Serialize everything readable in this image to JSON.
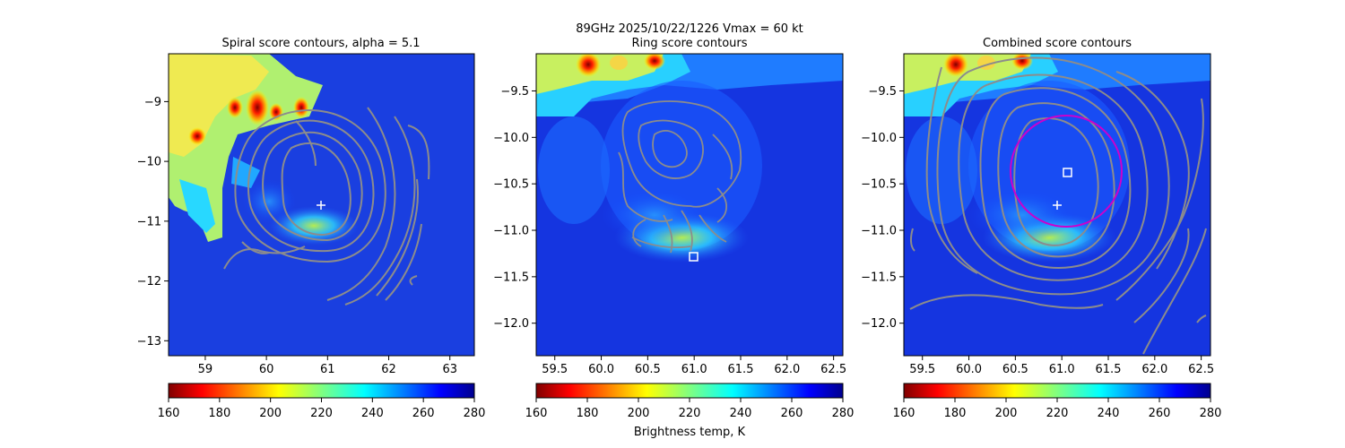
{
  "figure": {
    "suptitle": "89GHz  2025/10/22/1226    Vmax = 60 kt",
    "xlabel": "Brightness temp, K"
  },
  "chart_data": [
    {
      "type": "heatmap",
      "title": "Spiral score contours, alpha =  5.1",
      "xlim": [
        58.4,
        63.4
      ],
      "ylim": [
        -13.25,
        -8.2
      ],
      "xticks": [
        59,
        60,
        61,
        62,
        63
      ],
      "yticks": [
        -9,
        -10,
        -11,
        -12,
        -13
      ],
      "xtick_labels": [
        "59",
        "60",
        "61",
        "62",
        "63"
      ],
      "ytick_labels": [
        "−9",
        "−10",
        "−11",
        "−12",
        "−13"
      ],
      "colorbar": {
        "min": 160,
        "max": 280,
        "ticks": [
          160,
          180,
          200,
          220,
          240,
          260,
          280
        ],
        "tick_labels": [
          "160",
          "180",
          "200",
          "220",
          "240",
          "260",
          "280"
        ]
      },
      "markers": [
        {
          "shape": "plus",
          "x": 60.9,
          "y": -10.75
        }
      ]
    },
    {
      "type": "heatmap",
      "title": "Ring score contours",
      "xlim": [
        59.3,
        62.6
      ],
      "ylim": [
        -12.35,
        -9.1
      ],
      "xticks": [
        59.5,
        60.0,
        60.5,
        61.0,
        61.5,
        62.0,
        62.5
      ],
      "yticks": [
        -9.5,
        -10.0,
        -10.5,
        -11.0,
        -11.5,
        -12.0
      ],
      "xtick_labels": [
        "59.5",
        "60.0",
        "60.5",
        "61.0",
        "61.5",
        "62.0",
        "62.5"
      ],
      "ytick_labels": [
        "−9.5",
        "−10.0",
        "−10.5",
        "−11.0",
        "−11.5",
        "−12.0"
      ],
      "colorbar": {
        "min": 160,
        "max": 280,
        "ticks": [
          160,
          180,
          200,
          220,
          240,
          260,
          280
        ],
        "tick_labels": [
          "160",
          "180",
          "200",
          "220",
          "240",
          "260",
          "280"
        ]
      },
      "markers": [
        {
          "shape": "square",
          "x": 60.98,
          "y": -11.28
        }
      ]
    },
    {
      "type": "heatmap",
      "title": "Combined score contours",
      "xlim": [
        59.3,
        62.6
      ],
      "ylim": [
        -12.35,
        -9.1
      ],
      "xticks": [
        59.5,
        60.0,
        60.5,
        61.0,
        61.5,
        62.0,
        62.5
      ],
      "yticks": [
        -9.5,
        -10.0,
        -10.5,
        -11.0,
        -11.5,
        -12.0
      ],
      "xtick_labels": [
        "59.5",
        "60.0",
        "60.5",
        "61.0",
        "61.5",
        "62.0",
        "62.5"
      ],
      "ytick_labels": [
        "−9.5",
        "−10.0",
        "−10.5",
        "−11.0",
        "−11.5",
        "−12.0"
      ],
      "colorbar": {
        "min": 160,
        "max": 280,
        "ticks": [
          160,
          180,
          200,
          220,
          240,
          260,
          280
        ],
        "tick_labels": [
          "160",
          "180",
          "200",
          "220",
          "240",
          "260",
          "280"
        ]
      },
      "markers": [
        {
          "shape": "plus",
          "x": 60.9,
          "y": -10.73
        },
        {
          "shape": "square",
          "x": 61.05,
          "y": -10.38
        }
      ],
      "circle": {
        "cx": 61.04,
        "cy": -10.37,
        "r": 0.6,
        "color": "#cc00cc"
      }
    }
  ]
}
